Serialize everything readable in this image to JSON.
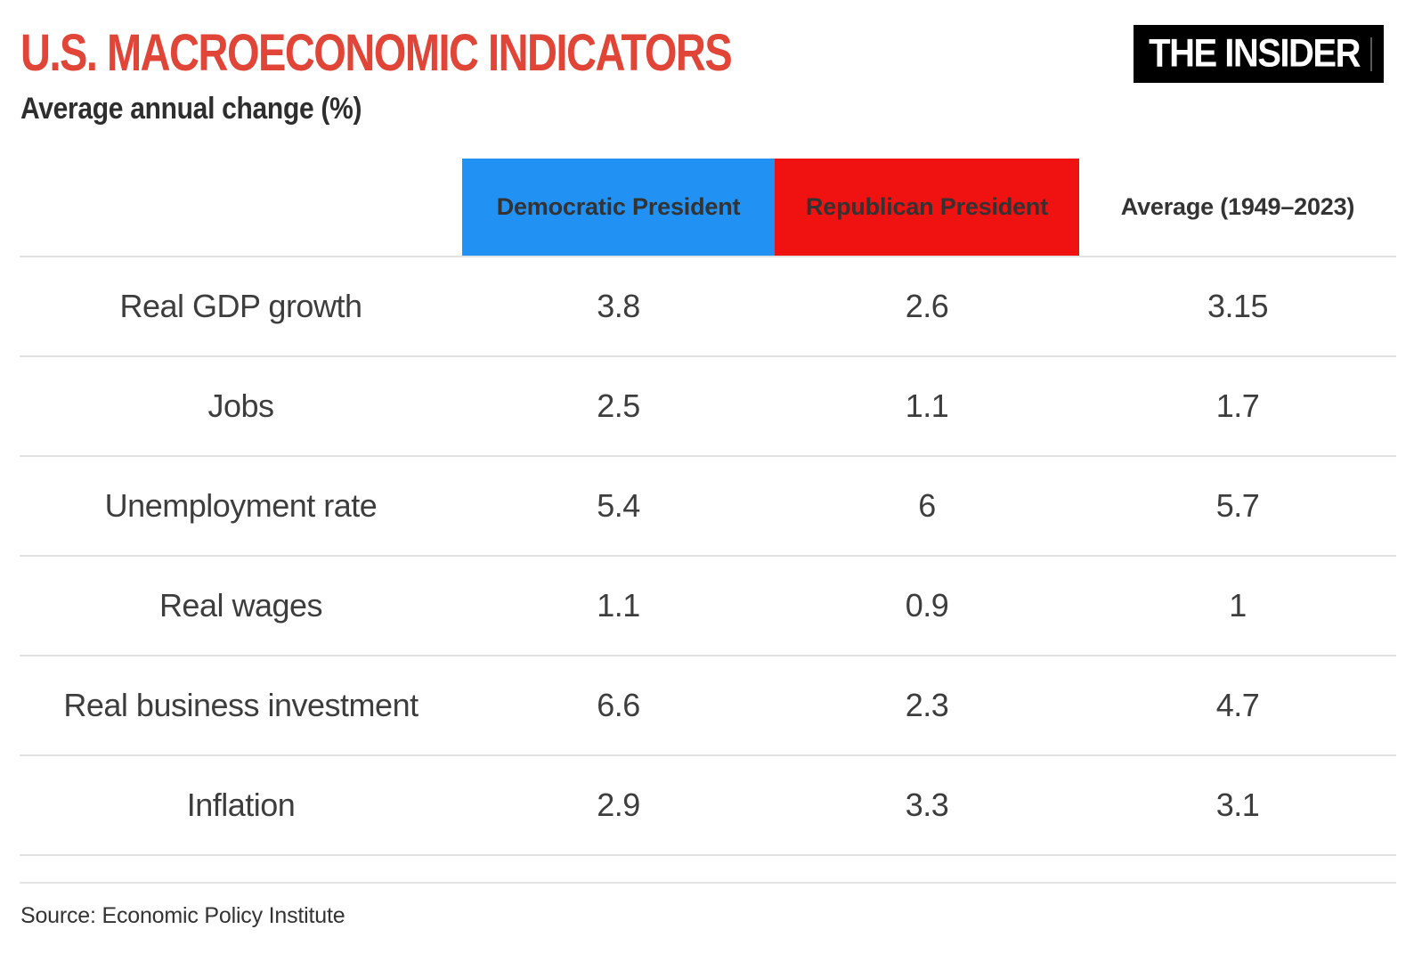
{
  "header": {
    "title": "U.S. MACROECONOMIC INDICATORS",
    "subtitle": "Average annual change (%)",
    "logo_text": "THE INSIDER"
  },
  "footer": {
    "source": "Source: Economic Policy Institute"
  },
  "colors": {
    "title_red": "#e04537",
    "democratic_blue": "#2191f3",
    "republican_red": "#f01111",
    "logo_background": "#000000",
    "body_text": "#3d3d3d",
    "divider_gray": "#e4e4e4"
  },
  "chart_data": {
    "type": "table",
    "title": "U.S. MACROECONOMIC INDICATORS",
    "subtitle": "Average annual change (%)",
    "columns": [
      "",
      "Democratic President",
      "Republican President",
      "Average (1949–2023)"
    ],
    "rows": [
      {
        "label": "Real GDP growth",
        "democratic": 3.8,
        "republican": 2.6,
        "average": 3.15
      },
      {
        "label": "Jobs",
        "democratic": 2.5,
        "republican": 1.1,
        "average": 1.7
      },
      {
        "label": "Unemployment rate",
        "democratic": 5.4,
        "republican": 6,
        "average": 5.7
      },
      {
        "label": "Real wages",
        "democratic": 1.1,
        "republican": 0.9,
        "average": 1
      },
      {
        "label": "Real business investment",
        "democratic": 6.6,
        "republican": 2.3,
        "average": 4.7
      },
      {
        "label": "Inflation",
        "democratic": 2.9,
        "republican": 3.3,
        "average": 3.1
      }
    ],
    "source": "Economic Policy Institute",
    "layout": {
      "grid": "off",
      "legend": "column-header-blocks"
    }
  }
}
